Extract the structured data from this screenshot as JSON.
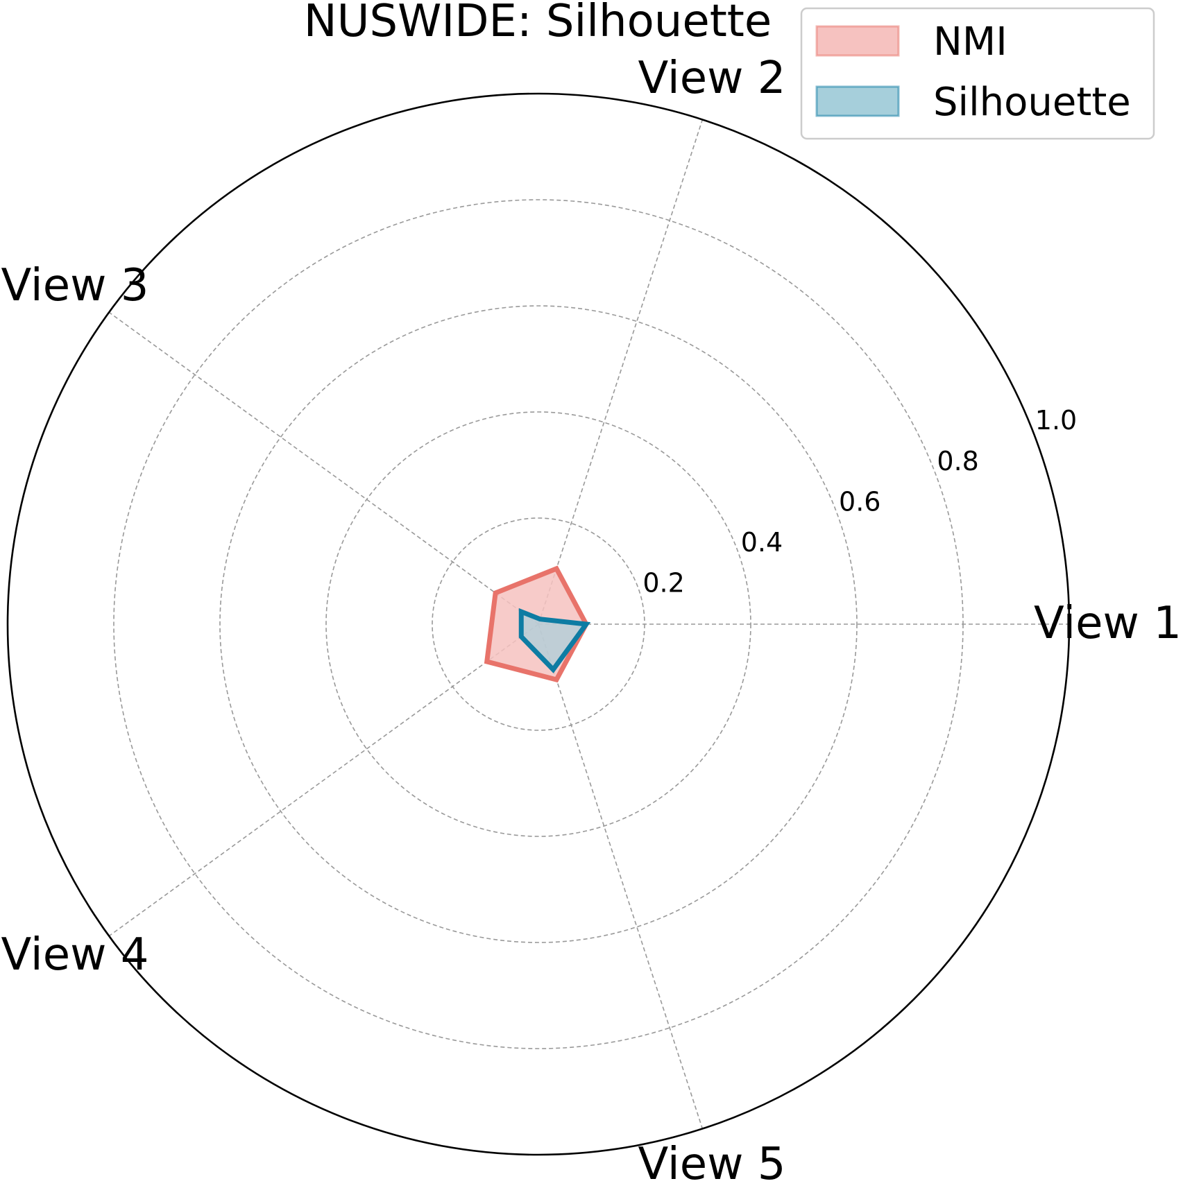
{
  "chart_data": {
    "type": "radar",
    "title": "NUSWIDE: Silhouette",
    "axes": [
      "View 1",
      "View 2",
      "View 3",
      "View 4",
      "View 5"
    ],
    "rlim": [
      0,
      1.0
    ],
    "rticks": [
      0.2,
      0.4,
      0.6,
      0.8,
      1.0
    ],
    "rtick_labels": [
      "0.2",
      "0.4",
      "0.6",
      "0.8",
      "1.0"
    ],
    "grid": true,
    "legend_position": "top-right",
    "series": [
      {
        "name": "NMI",
        "values": [
          0.09,
          0.11,
          0.1,
          0.12,
          0.11
        ],
        "color": "#e8736a",
        "fill": "#f6c2c0"
      },
      {
        "name": "Silhouette",
        "values": [
          0.09,
          0.01,
          0.04,
          0.04,
          0.09
        ],
        "color": "#0e7ca3",
        "fill": "#a6cfdb"
      }
    ]
  }
}
